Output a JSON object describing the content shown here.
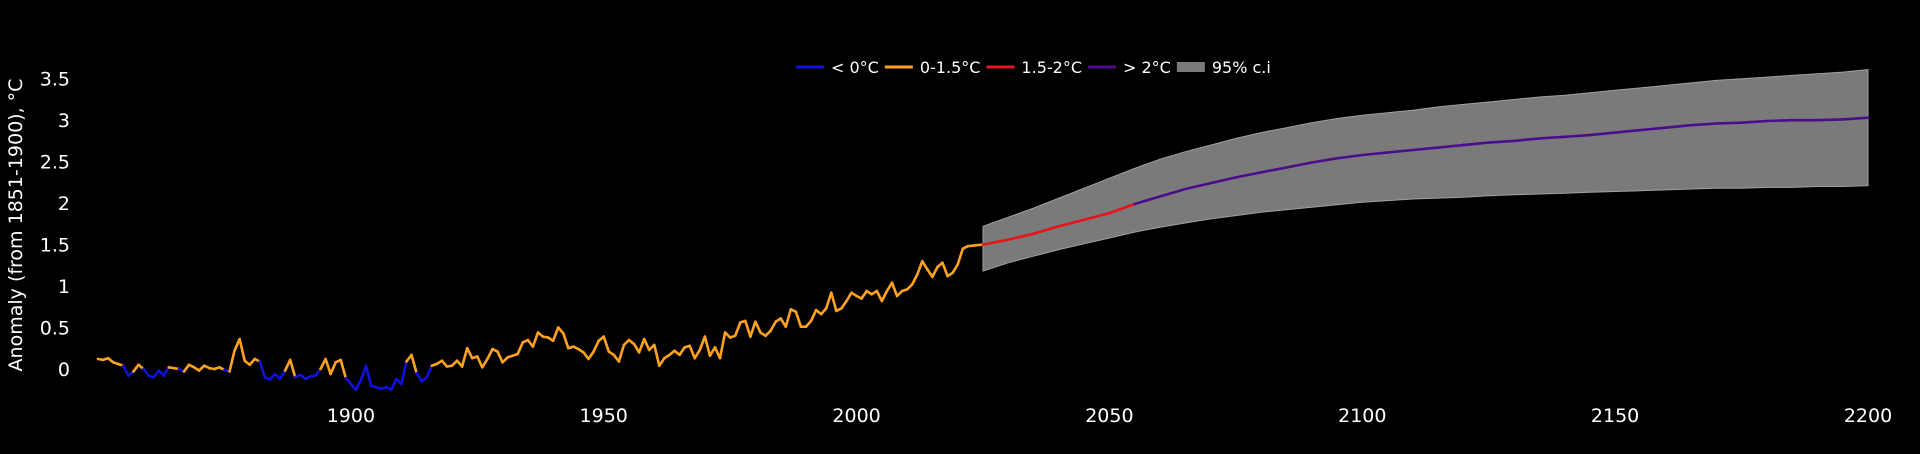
{
  "chart_data": {
    "type": "line",
    "title": "",
    "xlabel": "",
    "ylabel": "Anomaly (from 1851-1900), °C",
    "xlim": [
      1850,
      2200
    ],
    "ylim": [
      -0.35,
      3.75
    ],
    "x_ticks": [
      1900,
      1950,
      2000,
      2050,
      2100,
      2150,
      2200
    ],
    "y_ticks": [
      0,
      0.5,
      1,
      1.5,
      2,
      2.5,
      3,
      3.5
    ],
    "y_tick_labels": [
      "0",
      "0.5",
      "1",
      "1.5",
      "2",
      "2.5",
      "3",
      "3.5"
    ],
    "grid": false,
    "legend_position": "top-center",
    "colors": {
      "background": "#000000",
      "text": "#ffffff",
      "below_zero": "#1010e0",
      "zero_to_1_5": "#ffa21f",
      "one_5_to_2": "#e8141a",
      "above_2": "#4b0d8c",
      "ci_band": "#7a7a7a"
    },
    "legend": [
      {
        "label": "< 0°C",
        "color_key": "below_zero",
        "kind": "line"
      },
      {
        "label": "0-1.5°C",
        "color_key": "zero_to_1_5",
        "kind": "line"
      },
      {
        "label": "1.5-2°C",
        "color_key": "one_5_to_2",
        "kind": "line"
      },
      {
        "label": "> 2°C",
        "color_key": "above_2",
        "kind": "line"
      },
      {
        "label": "95% c.i",
        "color_key": "ci_band",
        "kind": "patch"
      }
    ],
    "thresholds": [
      0,
      1.5,
      2
    ],
    "historical": {
      "start_year": 1850,
      "values": [
        0.12,
        0.11,
        0.13,
        0.08,
        0.06,
        0.04,
        -0.08,
        -0.03,
        0.05,
        0.0,
        -0.08,
        -0.1,
        -0.02,
        -0.08,
        0.02,
        0.01,
        0.0,
        -0.03,
        0.05,
        0.02,
        -0.02,
        0.04,
        0.01,
        0.0,
        0.02,
        -0.01,
        -0.03,
        0.22,
        0.36,
        0.1,
        0.05,
        0.12,
        0.09,
        -0.1,
        -0.13,
        -0.06,
        -0.12,
        -0.02,
        0.11,
        -0.1,
        -0.07,
        -0.12,
        -0.09,
        -0.08,
        0.0,
        0.12,
        -0.06,
        0.08,
        0.11,
        -0.11,
        -0.18,
        -0.25,
        -0.13,
        0.04,
        -0.2,
        -0.22,
        -0.24,
        -0.22,
        -0.25,
        -0.12,
        -0.18,
        0.09,
        0.17,
        -0.05,
        -0.15,
        -0.1,
        0.04,
        0.06,
        0.1,
        0.03,
        0.04,
        0.1,
        0.03,
        0.25,
        0.13,
        0.15,
        0.02,
        0.12,
        0.24,
        0.21,
        0.08,
        0.14,
        0.16,
        0.18,
        0.32,
        0.35,
        0.27,
        0.44,
        0.39,
        0.38,
        0.34,
        0.5,
        0.43,
        0.25,
        0.27,
        0.24,
        0.2,
        0.12,
        0.21,
        0.34,
        0.39,
        0.21,
        0.17,
        0.09,
        0.29,
        0.35,
        0.3,
        0.2,
        0.36,
        0.23,
        0.29,
        0.04,
        0.13,
        0.17,
        0.22,
        0.17,
        0.26,
        0.28,
        0.13,
        0.23,
        0.39,
        0.16,
        0.26,
        0.13,
        0.44,
        0.38,
        0.4,
        0.56,
        0.58,
        0.39,
        0.57,
        0.44,
        0.4,
        0.46,
        0.57,
        0.61,
        0.51,
        0.72,
        0.69,
        0.51,
        0.51,
        0.58,
        0.71,
        0.66,
        0.73,
        0.92,
        0.7,
        0.73,
        0.82,
        0.92,
        0.88,
        0.85,
        0.94,
        0.9,
        0.94,
        0.82,
        0.94,
        1.04,
        0.88,
        0.94,
        0.96,
        1.02,
        1.14,
        1.3,
        1.2,
        1.11,
        1.23,
        1.28,
        1.12,
        1.16,
        1.26,
        1.45,
        1.48
      ]
    },
    "projection": {
      "x": [
        2025,
        2030,
        2035,
        2040,
        2045,
        2050,
        2055,
        2060,
        2065,
        2070,
        2075,
        2080,
        2085,
        2090,
        2095,
        2100,
        2105,
        2110,
        2115,
        2120,
        2125,
        2130,
        2135,
        2140,
        2145,
        2150,
        2155,
        2160,
        2165,
        2170,
        2175,
        2180,
        2185,
        2190,
        2195,
        2200
      ],
      "mean": [
        1.5,
        1.56,
        1.63,
        1.72,
        1.8,
        1.88,
        1.99,
        2.08,
        2.17,
        2.24,
        2.31,
        2.37,
        2.43,
        2.49,
        2.54,
        2.58,
        2.61,
        2.64,
        2.67,
        2.7,
        2.73,
        2.75,
        2.78,
        2.8,
        2.82,
        2.85,
        2.88,
        2.91,
        2.94,
        2.96,
        2.97,
        2.99,
        3.0,
        3.0,
        3.01,
        3.03
      ],
      "ci_upper": [
        1.72,
        1.83,
        1.94,
        2.06,
        2.18,
        2.3,
        2.42,
        2.53,
        2.62,
        2.7,
        2.78,
        2.85,
        2.91,
        2.97,
        3.02,
        3.06,
        3.09,
        3.12,
        3.16,
        3.19,
        3.22,
        3.25,
        3.28,
        3.3,
        3.33,
        3.36,
        3.39,
        3.42,
        3.45,
        3.48,
        3.5,
        3.52,
        3.54,
        3.56,
        3.58,
        3.61
      ],
      "ci_lower": [
        1.18,
        1.28,
        1.36,
        1.44,
        1.51,
        1.58,
        1.65,
        1.71,
        1.76,
        1.81,
        1.85,
        1.89,
        1.92,
        1.95,
        1.98,
        2.01,
        2.03,
        2.05,
        2.06,
        2.07,
        2.09,
        2.1,
        2.11,
        2.12,
        2.13,
        2.14,
        2.15,
        2.16,
        2.17,
        2.18,
        2.18,
        2.19,
        2.19,
        2.2,
        2.2,
        2.21
      ]
    }
  }
}
